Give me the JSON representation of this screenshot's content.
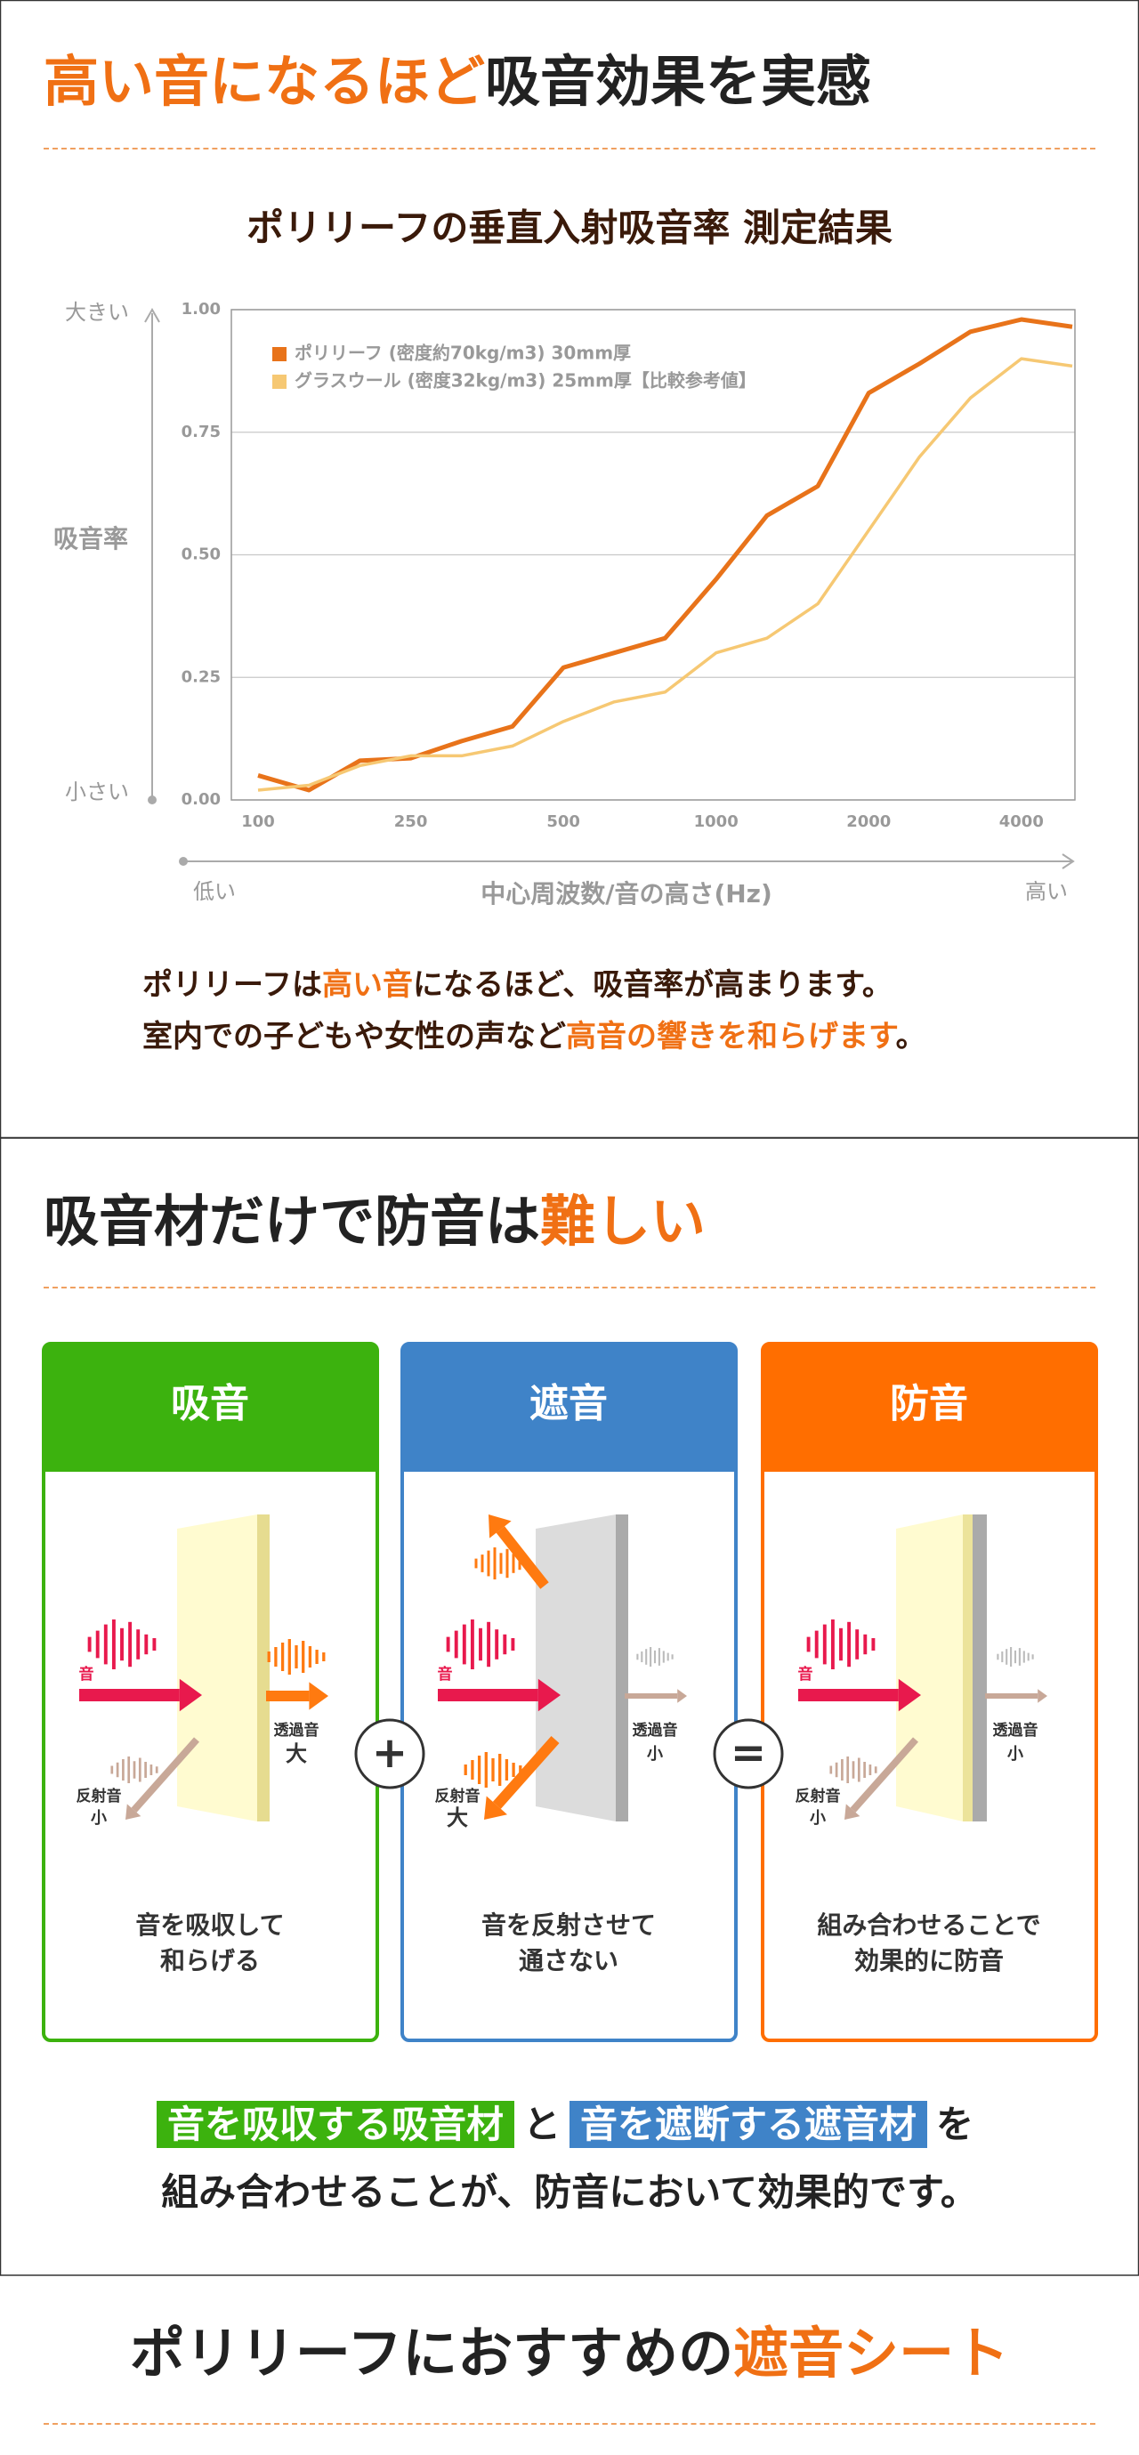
{
  "header1": {
    "parts": [
      {
        "text": "高い音になるほど",
        "color": "#f07014"
      },
      {
        "text": "吸音効果を実感",
        "color": "#222222"
      }
    ]
  },
  "chart_data": {
    "type": "line",
    "title": "ポリリーフの垂直入射吸音率 測定結果",
    "x_label": "中心周波数/音の高さ(Hz)",
    "y_label": "吸音率",
    "y_high": "大きい",
    "y_low": "小さい",
    "x_low": "低い",
    "x_high": "高い",
    "categories": [
      "100",
      null,
      null,
      "250",
      null,
      null,
      "500",
      null,
      null,
      "1000",
      null,
      null,
      "2000",
      null,
      null,
      "4000",
      null
    ],
    "ylim": [
      0,
      1
    ],
    "yticks": [
      {
        "value": 0,
        "label": "0.00"
      },
      {
        "value": 0.25,
        "label": "0.25"
      },
      {
        "value": 0.5,
        "label": "0.50"
      },
      {
        "value": 0.75,
        "label": "0.75"
      },
      {
        "value": 1,
        "label": "1.00"
      }
    ],
    "grid": true,
    "legend": "upper left",
    "series": [
      {
        "name": "ポリリーフ (密度約70kg/m3) 30mm厚",
        "color": "#e8731a",
        "values": [
          0.05,
          0.02,
          0.08,
          0.085,
          0.12,
          0.15,
          0.27,
          0.3,
          0.33,
          0.45,
          0.58,
          0.64,
          0.83,
          0.89,
          0.955,
          0.98,
          0.965
        ]
      },
      {
        "name": "グラスウール (密度32kg/m3) 25mm厚【比較参考値】",
        "color": "#f6c873",
        "values": [
          0.02,
          0.03,
          0.07,
          0.09,
          0.09,
          0.11,
          0.16,
          0.2,
          0.22,
          0.3,
          0.33,
          0.4,
          0.55,
          0.7,
          0.82,
          0.9,
          0.885
        ]
      }
    ]
  },
  "body1": [
    [
      {
        "text": "ポリリーフは",
        "color": "#3a1a0a"
      },
      {
        "text": "高い音",
        "color": "#f07014"
      },
      {
        "text": "になるほど、吸音率が高まります。",
        "color": "#3a1a0a"
      }
    ],
    [
      {
        "text": "室内での子どもや女性の声など",
        "color": "#3a1a0a"
      },
      {
        "text": "高音の響きを和らげます",
        "color": "#f07014"
      },
      {
        "text": "。",
        "color": "#3a1a0a"
      }
    ]
  ],
  "header2": {
    "parts": [
      {
        "text": "吸音材だけで防音は",
        "color": "#222222"
      },
      {
        "text": "難しい",
        "color": "#f07014"
      }
    ]
  },
  "cards": [
    {
      "title": "吸音",
      "color": "#3cb20e",
      "caption": [
        "音を吸収して",
        "和らげる"
      ],
      "in": "音",
      "trans": [
        "透過音",
        "大"
      ],
      "refl": [
        "反射音",
        "小"
      ]
    },
    {
      "title": "遮音",
      "color": "#3f83c8",
      "caption": [
        "音を反射させて",
        "通さない"
      ],
      "in": "音",
      "trans": [
        "透過音",
        "小"
      ],
      "refl": [
        "反射音",
        "大"
      ]
    },
    {
      "title": "防音",
      "color": "#ff6e00",
      "caption": [
        "組み合わせることで",
        "効果的に防音"
      ],
      "in": "音",
      "trans": [
        "透過音",
        "小"
      ],
      "refl": [
        "反射音",
        "小"
      ]
    }
  ],
  "operators": [
    "+",
    "="
  ],
  "summary": [
    [
      {
        "text": "音を吸収する吸音材",
        "bg": "#3cb20e"
      },
      {
        "text": "と"
      },
      {
        "text": "音を遮断する遮音材",
        "bg": "#3f83c8"
      },
      {
        "text": "を"
      }
    ],
    [
      {
        "text": "組み合わせることが、防音において効果的です。"
      }
    ]
  ],
  "header3": {
    "parts": [
      {
        "text": "ポリリーフにおすすめの",
        "color": "#222222"
      },
      {
        "text": "遮音シート",
        "color": "#f07014"
      }
    ]
  }
}
